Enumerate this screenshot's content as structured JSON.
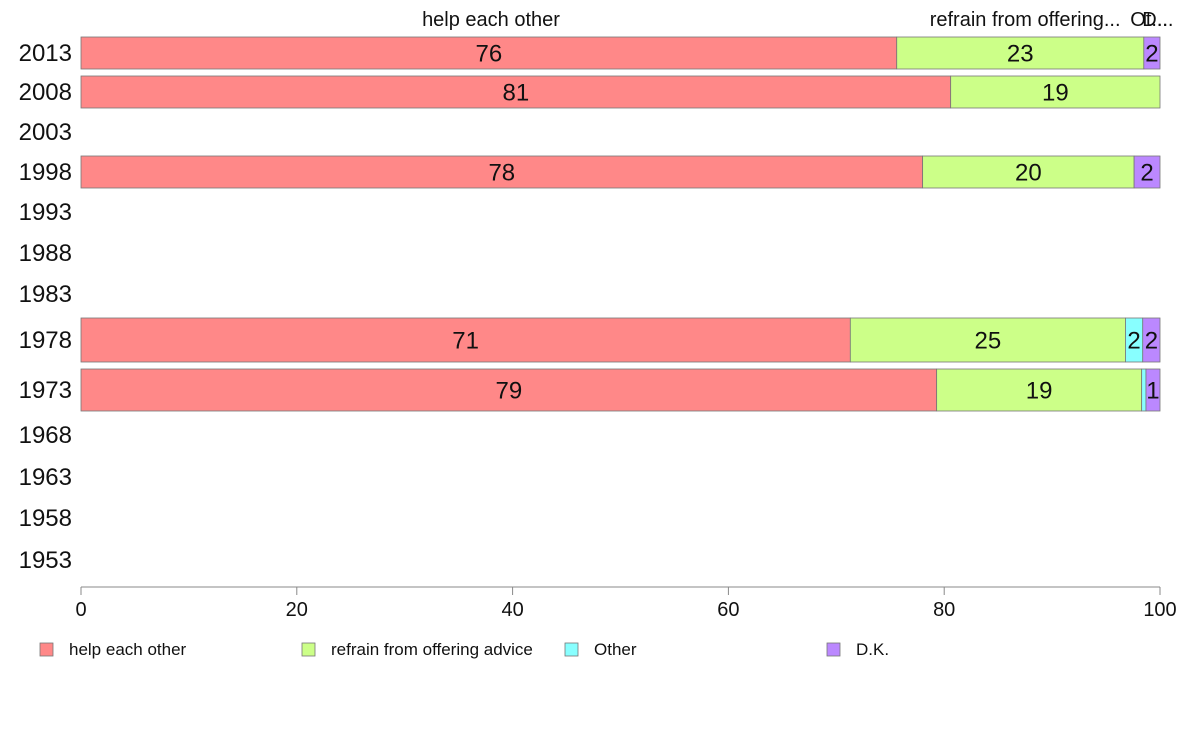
{
  "chart_data": {
    "type": "bar",
    "orientation": "horizontal",
    "stacked": true,
    "categories": [
      "2013",
      "2008",
      "2003",
      "1998",
      "1993",
      "1988",
      "1983",
      "1978",
      "1973",
      "1968",
      "1963",
      "1958",
      "1953"
    ],
    "series": [
      {
        "name": "help each other",
        "color": "#ff8888",
        "values": [
          75.6,
          80.6,
          null,
          78.0,
          null,
          null,
          null,
          71.3,
          79.3,
          null,
          null,
          null,
          null
        ],
        "labels": [
          "76",
          "81",
          "",
          "78",
          "",
          "",
          "",
          "71",
          "79",
          "",
          "",
          "",
          ""
        ]
      },
      {
        "name": "refrain from offering advice",
        "color": "#ccff88",
        "values": [
          22.9,
          19.4,
          null,
          19.6,
          null,
          null,
          null,
          25.5,
          19.0,
          null,
          null,
          null,
          null
        ],
        "labels": [
          "23",
          "19",
          "",
          "20",
          "",
          "",
          "",
          "25",
          "19",
          "",
          "",
          "",
          ""
        ]
      },
      {
        "name": "Other",
        "color": "#88ffff",
        "values": [
          0,
          0,
          null,
          0,
          null,
          null,
          null,
          1.6,
          0.4,
          null,
          null,
          null,
          null
        ],
        "labels": [
          "",
          "",
          "",
          "",
          "",
          "",
          "",
          "2",
          "",
          "",
          "",
          "",
          ""
        ]
      },
      {
        "name": "D.K.",
        "color": "#bb88ff",
        "values": [
          1.5,
          0,
          null,
          2.4,
          null,
          null,
          null,
          1.6,
          1.3,
          null,
          null,
          null,
          null
        ],
        "labels": [
          "2",
          "",
          "",
          "2",
          "",
          "",
          "",
          "2",
          "1",
          "",
          "",
          "",
          ""
        ]
      }
    ],
    "top_labels": [
      {
        "text": "help each other",
        "x": 38
      },
      {
        "text": "refrain from offering...",
        "x": 87.5
      },
      {
        "text": "Ot...",
        "x": 99
      },
      {
        "text": "D...",
        "x": 99.8
      }
    ],
    "xlim": [
      0,
      100
    ],
    "xticks": [
      "0",
      "20",
      "40",
      "60",
      "80",
      "100"
    ],
    "legend": {
      "position": "bottom",
      "items": [
        "help each other",
        "refrain from offering advice",
        "Other",
        "D.K."
      ]
    }
  }
}
